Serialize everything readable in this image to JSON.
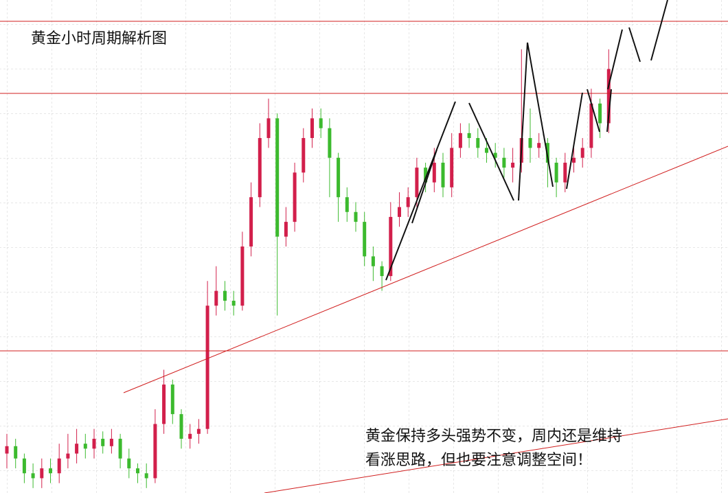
{
  "chart_data": {
    "type": "candlestick",
    "title": "黄金小时周期解析图",
    "annotation": [
      "黄金保持多头强势不变，周内还是维持",
      "看涨思路，但也要注意调整空间！"
    ],
    "ylim": [
      0,
      100
    ],
    "up_color": "#d21f4b",
    "down_color": "#3cba2e",
    "open": [
      8,
      9.5,
      7,
      4,
      3,
      5,
      4,
      7,
      8,
      10,
      9,
      11,
      9.5,
      11,
      7,
      5,
      4,
      3,
      14,
      22,
      16,
      11,
      12,
      13,
      38,
      41,
      39,
      38,
      50,
      60,
      72,
      76,
      52,
      55,
      65,
      72,
      76,
      74,
      68,
      60,
      57,
      55,
      48,
      46,
      44,
      56,
      58,
      60,
      66,
      63,
      67,
      62,
      70,
      73,
      72,
      70,
      69,
      68,
      66,
      67,
      72,
      70,
      71,
      67,
      63,
      67,
      68,
      70,
      79,
      75
    ],
    "high": [
      12,
      11,
      8,
      6,
      7,
      7,
      10,
      12,
      13,
      12,
      13,
      12.5,
      13,
      12,
      9,
      6,
      6,
      17,
      25,
      23,
      17,
      14,
      15,
      43,
      46,
      43,
      41,
      53,
      63,
      75,
      80,
      77,
      58,
      67,
      74,
      78,
      78,
      76,
      69,
      62,
      59,
      57,
      50,
      47,
      59,
      61,
      62,
      68,
      67,
      70,
      69,
      73,
      75,
      75,
      74,
      72,
      71,
      70,
      70,
      90,
      78,
      73,
      72,
      68,
      69,
      70,
      72,
      82,
      80,
      90
    ],
    "low": [
      5,
      5,
      2,
      1,
      1,
      2,
      2,
      5,
      6,
      7,
      7,
      8,
      8,
      5,
      3,
      2,
      1,
      2,
      12,
      14,
      9,
      9,
      10,
      12,
      36,
      37,
      36,
      37,
      48,
      58,
      70,
      36,
      50,
      53,
      63,
      70,
      72,
      60,
      55,
      55,
      53,
      46,
      43,
      41,
      43,
      54,
      56,
      58,
      61,
      61,
      60,
      60,
      68,
      70,
      68,
      67,
      66,
      64,
      63,
      65,
      67,
      68,
      62,
      60,
      61,
      65,
      66,
      68,
      72,
      73
    ],
    "close": [
      9.5,
      7,
      4,
      3,
      5,
      4,
      7,
      8,
      10,
      9,
      11,
      9.5,
      11,
      7,
      5,
      4,
      3,
      14,
      22,
      16,
      11,
      12,
      13,
      38,
      41,
      39,
      38,
      50,
      60,
      72,
      76,
      52,
      55,
      65,
      72,
      76,
      74,
      68,
      60,
      57,
      55,
      48,
      46,
      44,
      56,
      58,
      60,
      66,
      63,
      67,
      62,
      70,
      73,
      72,
      70,
      69,
      68,
      66,
      67,
      72,
      70,
      71,
      67,
      63,
      67,
      68,
      70,
      79,
      75,
      86
    ]
  }
}
